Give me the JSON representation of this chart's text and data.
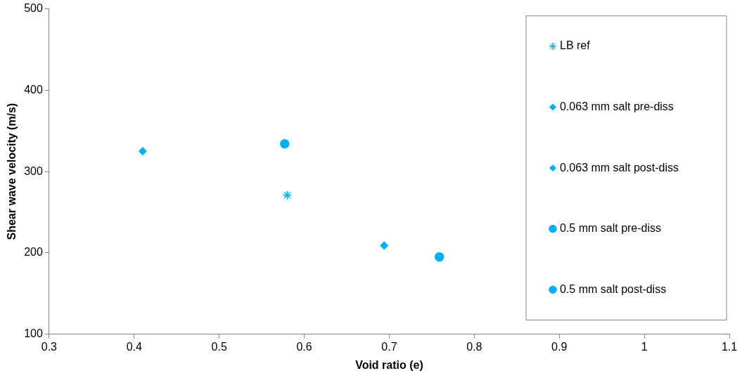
{
  "chart_data": {
    "type": "scatter",
    "xlabel": "Void ratio (e)",
    "ylabel": "Shear wave velocity (m/s)",
    "xlim": [
      0.3,
      1.1
    ],
    "xticks": [
      0.3,
      0.4,
      0.5,
      0.6,
      0.7,
      0.8,
      0.9,
      1,
      1.1
    ],
    "ylim": [
      100,
      500
    ],
    "yticks": [
      100,
      200,
      300,
      400,
      500
    ],
    "grid": false,
    "legend": "right",
    "series": [
      {
        "name": "LB ref",
        "color": "#00b0f0",
        "marker": "cross",
        "x": [
          0.58
        ],
        "values": [
          271
        ]
      },
      {
        "name": "0.063 mm salt pre-diss",
        "color": "#00b0f0",
        "marker": "diamond",
        "x": [
          0.41
        ],
        "values": [
          325
        ]
      },
      {
        "name": "0.063 mm salt post-diss",
        "color": "#00b0f0",
        "marker": "diamond",
        "x": [
          0.694
        ],
        "values": [
          209
        ]
      },
      {
        "name": "0.5 mm salt pre-diss",
        "color": "#00b0f0",
        "marker": "circle",
        "x": [
          0.577
        ],
        "values": [
          334
        ]
      },
      {
        "name": "0.5 mm salt post-diss",
        "color": "#00b0f0",
        "marker": "circle",
        "x": [
          0.759
        ],
        "values": [
          195
        ]
      }
    ]
  }
}
